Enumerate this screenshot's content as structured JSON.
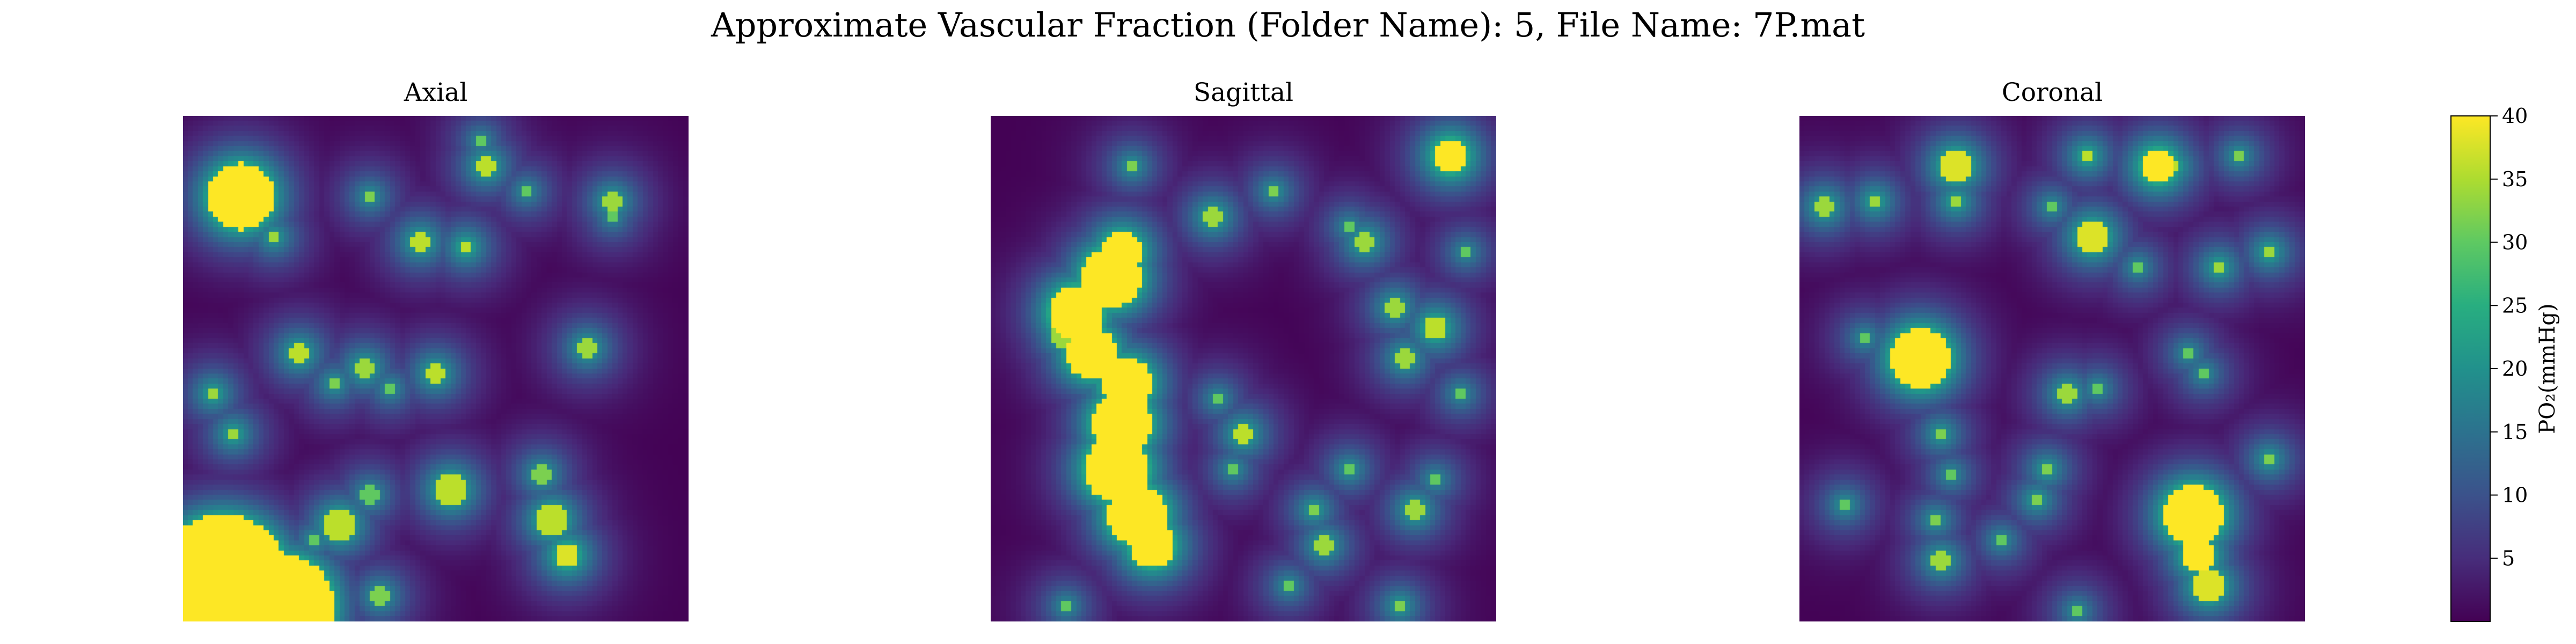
{
  "figure": {
    "title": "Approximate Vascular Fraction (Folder Name): 5, File Name: 7P.mat"
  },
  "chart_data": {
    "type": "heatmap",
    "title": "Approximate Vascular Fraction (Folder Name): 5, File Name: 7P.mat",
    "colormap": "viridis",
    "panels": [
      {
        "title": "Axial",
        "vessels": [
          {
            "x": 0.115,
            "y": 0.16,
            "r": 0.065,
            "v": 40
          },
          {
            "x": 0.18,
            "y": 0.24,
            "r": 0.012,
            "v": 34
          },
          {
            "x": 0.08,
            "y": 0.92,
            "r": 0.13,
            "v": 40
          },
          {
            "x": 0.2,
            "y": 0.97,
            "r": 0.1,
            "v": 40
          },
          {
            "x": 0.31,
            "y": 0.81,
            "r": 0.03,
            "v": 36
          },
          {
            "x": 0.26,
            "y": 0.84,
            "r": 0.013,
            "v": 30
          },
          {
            "x": 0.37,
            "y": 0.75,
            "r": 0.018,
            "v": 30
          },
          {
            "x": 0.53,
            "y": 0.74,
            "r": 0.03,
            "v": 36
          },
          {
            "x": 0.73,
            "y": 0.8,
            "r": 0.03,
            "v": 36
          },
          {
            "x": 0.76,
            "y": 0.87,
            "r": 0.025,
            "v": 38
          },
          {
            "x": 0.71,
            "y": 0.71,
            "r": 0.018,
            "v": 32
          },
          {
            "x": 0.06,
            "y": 0.55,
            "r": 0.015,
            "v": 34
          },
          {
            "x": 0.1,
            "y": 0.63,
            "r": 0.015,
            "v": 34
          },
          {
            "x": 0.23,
            "y": 0.47,
            "r": 0.018,
            "v": 36
          },
          {
            "x": 0.36,
            "y": 0.5,
            "r": 0.02,
            "v": 34
          },
          {
            "x": 0.41,
            "y": 0.54,
            "r": 0.012,
            "v": 30
          },
          {
            "x": 0.5,
            "y": 0.51,
            "r": 0.018,
            "v": 36
          },
          {
            "x": 0.3,
            "y": 0.53,
            "r": 0.012,
            "v": 32
          },
          {
            "x": 0.8,
            "y": 0.46,
            "r": 0.018,
            "v": 34
          },
          {
            "x": 0.6,
            "y": 0.1,
            "r": 0.018,
            "v": 36
          },
          {
            "x": 0.59,
            "y": 0.05,
            "r": 0.01,
            "v": 30
          },
          {
            "x": 0.68,
            "y": 0.15,
            "r": 0.011,
            "v": 30
          },
          {
            "x": 0.47,
            "y": 0.25,
            "r": 0.018,
            "v": 36
          },
          {
            "x": 0.37,
            "y": 0.16,
            "r": 0.011,
            "v": 32
          },
          {
            "x": 0.56,
            "y": 0.26,
            "r": 0.015,
            "v": 36
          },
          {
            "x": 0.85,
            "y": 0.17,
            "r": 0.018,
            "v": 34
          },
          {
            "x": 0.85,
            "y": 0.2,
            "r": 0.01,
            "v": 30
          },
          {
            "x": 0.39,
            "y": 0.95,
            "r": 0.018,
            "v": 32
          }
        ]
      },
      {
        "title": "Sagittal",
        "vessels": [
          {
            "x": 0.24,
            "y": 0.32,
            "r": 0.06,
            "v": 40
          },
          {
            "x": 0.17,
            "y": 0.39,
            "r": 0.055,
            "v": 40
          },
          {
            "x": 0.2,
            "y": 0.47,
            "r": 0.05,
            "v": 40
          },
          {
            "x": 0.27,
            "y": 0.53,
            "r": 0.05,
            "v": 40
          },
          {
            "x": 0.26,
            "y": 0.61,
            "r": 0.06,
            "v": 40
          },
          {
            "x": 0.25,
            "y": 0.7,
            "r": 0.065,
            "v": 40
          },
          {
            "x": 0.29,
            "y": 0.79,
            "r": 0.06,
            "v": 40
          },
          {
            "x": 0.32,
            "y": 0.85,
            "r": 0.045,
            "v": 40
          },
          {
            "x": 0.26,
            "y": 0.27,
            "r": 0.04,
            "v": 40
          },
          {
            "x": 0.15,
            "y": 0.43,
            "r": 0.03,
            "v": 34
          },
          {
            "x": 0.5,
            "y": 0.63,
            "r": 0.018,
            "v": 36
          },
          {
            "x": 0.48,
            "y": 0.7,
            "r": 0.012,
            "v": 30
          },
          {
            "x": 0.45,
            "y": 0.56,
            "r": 0.012,
            "v": 30
          },
          {
            "x": 0.44,
            "y": 0.2,
            "r": 0.02,
            "v": 34
          },
          {
            "x": 0.56,
            "y": 0.15,
            "r": 0.011,
            "v": 32
          },
          {
            "x": 0.74,
            "y": 0.25,
            "r": 0.02,
            "v": 34
          },
          {
            "x": 0.71,
            "y": 0.22,
            "r": 0.011,
            "v": 30
          },
          {
            "x": 0.91,
            "y": 0.08,
            "r": 0.035,
            "v": 40
          },
          {
            "x": 0.28,
            "y": 0.1,
            "r": 0.012,
            "v": 32
          },
          {
            "x": 0.8,
            "y": 0.38,
            "r": 0.018,
            "v": 34
          },
          {
            "x": 0.88,
            "y": 0.42,
            "r": 0.025,
            "v": 36
          },
          {
            "x": 0.82,
            "y": 0.48,
            "r": 0.018,
            "v": 34
          },
          {
            "x": 0.94,
            "y": 0.27,
            "r": 0.011,
            "v": 30
          },
          {
            "x": 0.71,
            "y": 0.7,
            "r": 0.015,
            "v": 30
          },
          {
            "x": 0.84,
            "y": 0.78,
            "r": 0.02,
            "v": 34
          },
          {
            "x": 0.88,
            "y": 0.72,
            "r": 0.012,
            "v": 30
          },
          {
            "x": 0.64,
            "y": 0.78,
            "r": 0.015,
            "v": 32
          },
          {
            "x": 0.66,
            "y": 0.85,
            "r": 0.018,
            "v": 34
          },
          {
            "x": 0.59,
            "y": 0.93,
            "r": 0.012,
            "v": 30
          },
          {
            "x": 0.81,
            "y": 0.97,
            "r": 0.015,
            "v": 32
          },
          {
            "x": 0.15,
            "y": 0.97,
            "r": 0.012,
            "v": 30
          },
          {
            "x": 0.93,
            "y": 0.55,
            "r": 0.012,
            "v": 30
          }
        ]
      },
      {
        "title": "Coronal",
        "vessels": [
          {
            "x": 0.24,
            "y": 0.48,
            "r": 0.06,
            "v": 40
          },
          {
            "x": 0.78,
            "y": 0.79,
            "r": 0.06,
            "v": 40
          },
          {
            "x": 0.79,
            "y": 0.87,
            "r": 0.03,
            "v": 40
          },
          {
            "x": 0.81,
            "y": 0.93,
            "r": 0.03,
            "v": 38
          },
          {
            "x": 0.71,
            "y": 0.1,
            "r": 0.035,
            "v": 40
          },
          {
            "x": 0.74,
            "y": 0.1,
            "r": 0.015,
            "v": 36
          },
          {
            "x": 0.31,
            "y": 0.1,
            "r": 0.03,
            "v": 38
          },
          {
            "x": 0.57,
            "y": 0.08,
            "r": 0.015,
            "v": 36
          },
          {
            "x": 0.87,
            "y": 0.08,
            "r": 0.012,
            "v": 32
          },
          {
            "x": 0.05,
            "y": 0.18,
            "r": 0.02,
            "v": 34
          },
          {
            "x": 0.15,
            "y": 0.17,
            "r": 0.015,
            "v": 34
          },
          {
            "x": 0.31,
            "y": 0.17,
            "r": 0.015,
            "v": 34
          },
          {
            "x": 0.58,
            "y": 0.24,
            "r": 0.03,
            "v": 38
          },
          {
            "x": 0.67,
            "y": 0.3,
            "r": 0.012,
            "v": 30
          },
          {
            "x": 0.83,
            "y": 0.3,
            "r": 0.015,
            "v": 34
          },
          {
            "x": 0.93,
            "y": 0.27,
            "r": 0.015,
            "v": 34
          },
          {
            "x": 0.53,
            "y": 0.55,
            "r": 0.018,
            "v": 34
          },
          {
            "x": 0.59,
            "y": 0.54,
            "r": 0.012,
            "v": 30
          },
          {
            "x": 0.77,
            "y": 0.47,
            "r": 0.012,
            "v": 30
          },
          {
            "x": 0.8,
            "y": 0.51,
            "r": 0.012,
            "v": 30
          },
          {
            "x": 0.28,
            "y": 0.63,
            "r": 0.015,
            "v": 32
          },
          {
            "x": 0.3,
            "y": 0.71,
            "r": 0.012,
            "v": 30
          },
          {
            "x": 0.49,
            "y": 0.7,
            "r": 0.015,
            "v": 32
          },
          {
            "x": 0.47,
            "y": 0.76,
            "r": 0.015,
            "v": 32
          },
          {
            "x": 0.09,
            "y": 0.77,
            "r": 0.015,
            "v": 30
          },
          {
            "x": 0.27,
            "y": 0.8,
            "r": 0.012,
            "v": 32
          },
          {
            "x": 0.28,
            "y": 0.88,
            "r": 0.018,
            "v": 34
          },
          {
            "x": 0.4,
            "y": 0.84,
            "r": 0.012,
            "v": 30
          },
          {
            "x": 0.93,
            "y": 0.68,
            "r": 0.015,
            "v": 32
          },
          {
            "x": 0.55,
            "y": 0.98,
            "r": 0.012,
            "v": 30
          },
          {
            "x": 0.13,
            "y": 0.44,
            "r": 0.012,
            "v": 30
          },
          {
            "x": 0.5,
            "y": 0.18,
            "r": 0.012,
            "v": 30
          }
        ]
      }
    ],
    "colorbar": {
      "label": "PO$_2$(mmHg)",
      "label_display": "PO₂(mmHg)",
      "range": [
        0,
        40
      ],
      "ticks": [
        "5",
        "10",
        "15",
        "20",
        "25",
        "30",
        "35",
        "40"
      ],
      "tick_values": [
        5,
        10,
        15,
        20,
        25,
        30,
        35,
        40
      ]
    }
  }
}
